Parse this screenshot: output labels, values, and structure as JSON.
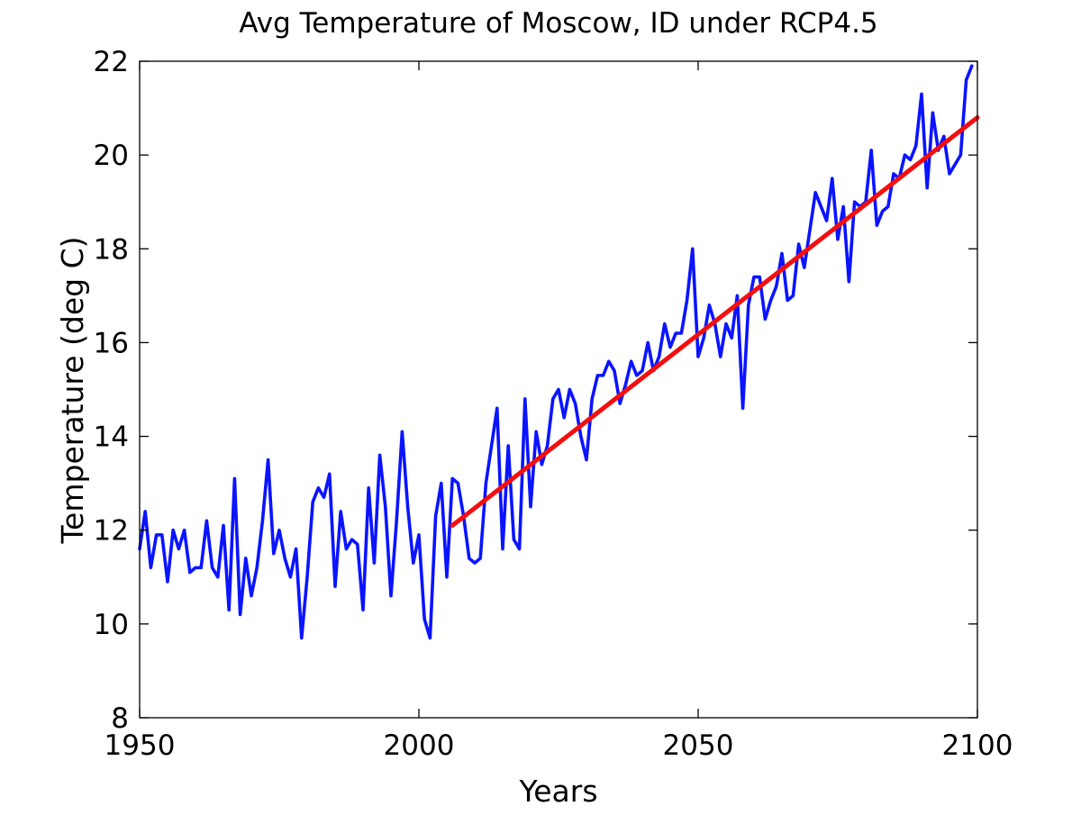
{
  "chart_data": {
    "type": "line",
    "title": "Avg Temperature of Moscow, ID under RCP4.5",
    "xlabel": "Years",
    "ylabel": "Temperature (deg C)",
    "xlim": [
      1950,
      2100
    ],
    "ylim": [
      8,
      22
    ],
    "xticks": [
      1950,
      2000,
      2050,
      2100
    ],
    "yticks": [
      8,
      10,
      12,
      14,
      16,
      18,
      20,
      22
    ],
    "grid": false,
    "legend": "none",
    "series": [
      {
        "color": "#0a14ff",
        "x": [
          1950,
          1951,
          1952,
          1953,
          1954,
          1955,
          1956,
          1957,
          1958,
          1959,
          1960,
          1961,
          1962,
          1963,
          1964,
          1965,
          1966,
          1967,
          1968,
          1969,
          1970,
          1971,
          1972,
          1973,
          1974,
          1975,
          1976,
          1977,
          1978,
          1979,
          1980,
          1981,
          1982,
          1983,
          1984,
          1985,
          1986,
          1987,
          1988,
          1989,
          1990,
          1991,
          1992,
          1993,
          1994,
          1995,
          1996,
          1997,
          1998,
          1999,
          2000,
          2001,
          2002,
          2003,
          2004,
          2005,
          2006,
          2007,
          2008,
          2009,
          2010,
          2011,
          2012,
          2013,
          2014,
          2015,
          2016,
          2017,
          2018,
          2019,
          2020,
          2021,
          2022,
          2023,
          2024,
          2025,
          2026,
          2027,
          2028,
          2029,
          2030,
          2031,
          2032,
          2033,
          2034,
          2035,
          2036,
          2037,
          2038,
          2039,
          2040,
          2041,
          2042,
          2043,
          2044,
          2045,
          2046,
          2047,
          2048,
          2049,
          2050,
          2051,
          2052,
          2053,
          2054,
          2055,
          2056,
          2057,
          2058,
          2059,
          2060,
          2061,
          2062,
          2063,
          2064,
          2065,
          2066,
          2067,
          2068,
          2069,
          2070,
          2071,
          2072,
          2073,
          2074,
          2075,
          2076,
          2077,
          2078,
          2079,
          2080,
          2081,
          2082,
          2083,
          2084,
          2085,
          2086,
          2087,
          2088,
          2089,
          2090,
          2091,
          2092,
          2093,
          2094,
          2095,
          2096,
          2097,
          2098,
          2099
        ],
        "values": [
          11.6,
          12.4,
          11.2,
          11.9,
          11.9,
          10.9,
          12.0,
          11.6,
          12.0,
          11.1,
          11.2,
          11.2,
          12.2,
          11.2,
          11.0,
          12.1,
          10.3,
          13.1,
          10.2,
          11.4,
          10.6,
          11.2,
          12.2,
          13.5,
          11.5,
          12.0,
          11.4,
          11.0,
          11.6,
          9.7,
          11.0,
          12.6,
          12.9,
          12.7,
          13.2,
          10.8,
          12.4,
          11.6,
          11.8,
          11.7,
          10.3,
          12.9,
          11.3,
          13.6,
          12.5,
          10.6,
          12.2,
          14.1,
          12.5,
          11.3,
          11.9,
          10.1,
          9.7,
          12.3,
          13.0,
          11.0,
          13.1,
          13.0,
          12.3,
          11.4,
          11.3,
          11.4,
          13.0,
          13.8,
          14.6,
          11.6,
          13.8,
          11.8,
          11.6,
          14.8,
          12.5,
          14.1,
          13.4,
          13.8,
          14.8,
          15.0,
          14.4,
          15.0,
          14.7,
          14.0,
          13.5,
          14.8,
          15.3,
          15.3,
          15.6,
          15.4,
          14.7,
          15.1,
          15.6,
          15.3,
          15.4,
          16.0,
          15.4,
          15.7,
          16.4,
          15.9,
          16.2,
          16.2,
          16.9,
          18.0,
          15.7,
          16.1,
          16.8,
          16.4,
          15.7,
          16.4,
          16.1,
          17.0,
          14.6,
          16.8,
          17.4,
          17.4,
          16.5,
          16.9,
          17.2,
          17.9,
          16.9,
          17.0,
          18.1,
          17.6,
          18.4,
          19.2,
          18.9,
          18.6,
          19.5,
          18.2,
          18.9,
          17.3,
          19.0,
          18.9,
          19.0,
          20.1,
          18.5,
          18.8,
          18.9,
          19.6,
          19.5,
          20.0,
          19.9,
          20.2,
          21.3,
          19.3,
          20.9,
          20.1,
          20.4,
          19.6,
          19.8,
          20.0,
          21.6,
          21.9
        ]
      },
      {
        "color": "#f20f0f",
        "x": [
          2006,
          2100
        ],
        "values": [
          12.1,
          20.8
        ]
      }
    ]
  }
}
